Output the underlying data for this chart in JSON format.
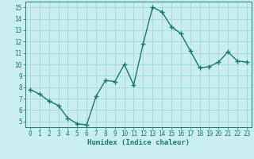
{
  "x": [
    0,
    1,
    2,
    3,
    4,
    5,
    6,
    7,
    8,
    9,
    10,
    11,
    12,
    13,
    14,
    15,
    16,
    17,
    18,
    19,
    20,
    21,
    22,
    23
  ],
  "y": [
    7.8,
    7.4,
    6.8,
    6.4,
    5.3,
    4.8,
    4.7,
    7.2,
    8.6,
    8.5,
    10.0,
    8.2,
    11.8,
    15.0,
    14.6,
    13.3,
    12.7,
    11.2,
    9.7,
    9.8,
    10.2,
    11.1,
    10.3,
    10.2
  ],
  "line_color": "#1a7a6e",
  "marker": "+",
  "marker_size": 4,
  "marker_linewidth": 1.0,
  "line_width": 1.0,
  "xlabel": "Humidex (Indice chaleur)",
  "xlim": [
    -0.5,
    23.5
  ],
  "ylim": [
    4.5,
    15.5
  ],
  "yticks": [
    5,
    6,
    7,
    8,
    9,
    10,
    11,
    12,
    13,
    14,
    15
  ],
  "xticks": [
    0,
    1,
    2,
    3,
    4,
    5,
    6,
    7,
    8,
    9,
    10,
    11,
    12,
    13,
    14,
    15,
    16,
    17,
    18,
    19,
    20,
    21,
    22,
    23
  ],
  "bg_color": "#c8eeee",
  "grid_color": "#a8d8d8",
  "tick_color": "#1a7a6e",
  "label_fontsize": 6.5,
  "tick_fontsize": 5.5
}
